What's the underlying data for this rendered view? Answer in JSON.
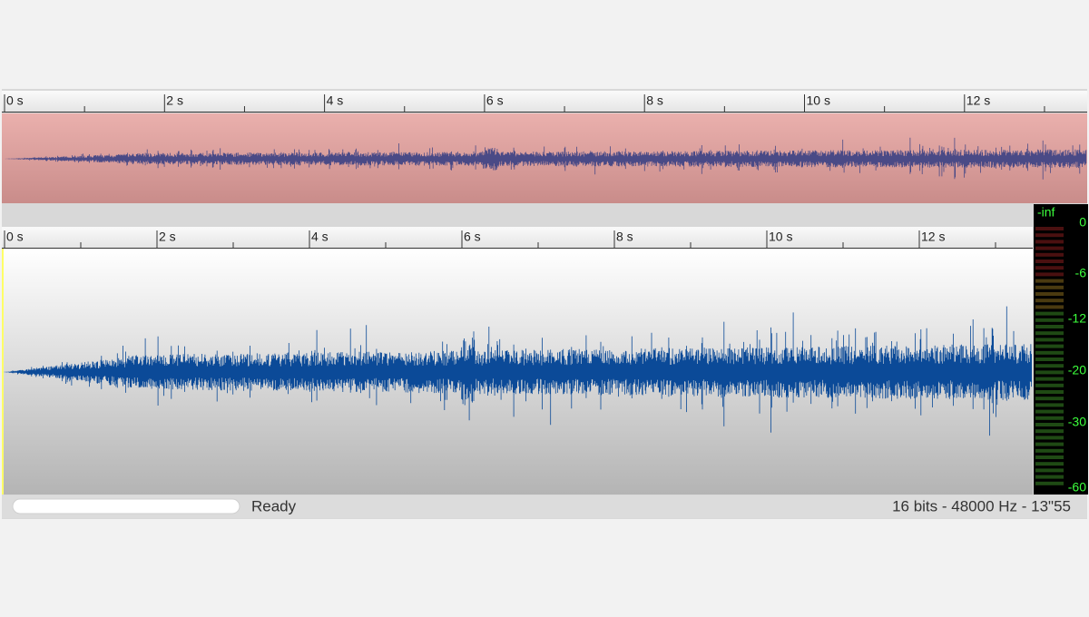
{
  "overview_ruler": {
    "ticks": [
      "0 s",
      "2 s",
      "4 s",
      "6 s",
      "8 s",
      "10 s",
      "12 s"
    ]
  },
  "main_ruler": {
    "ticks": [
      "0 s",
      "2 s",
      "4 s",
      "6 s",
      "8 s",
      "10 s",
      "12 s"
    ]
  },
  "level_meter": {
    "labels": [
      "-inf",
      "0",
      "-6",
      "-12",
      "-20",
      "-30",
      "-60"
    ]
  },
  "status": {
    "state": "Ready",
    "info": "16 bits - 48000 Hz - 13\"55"
  }
}
